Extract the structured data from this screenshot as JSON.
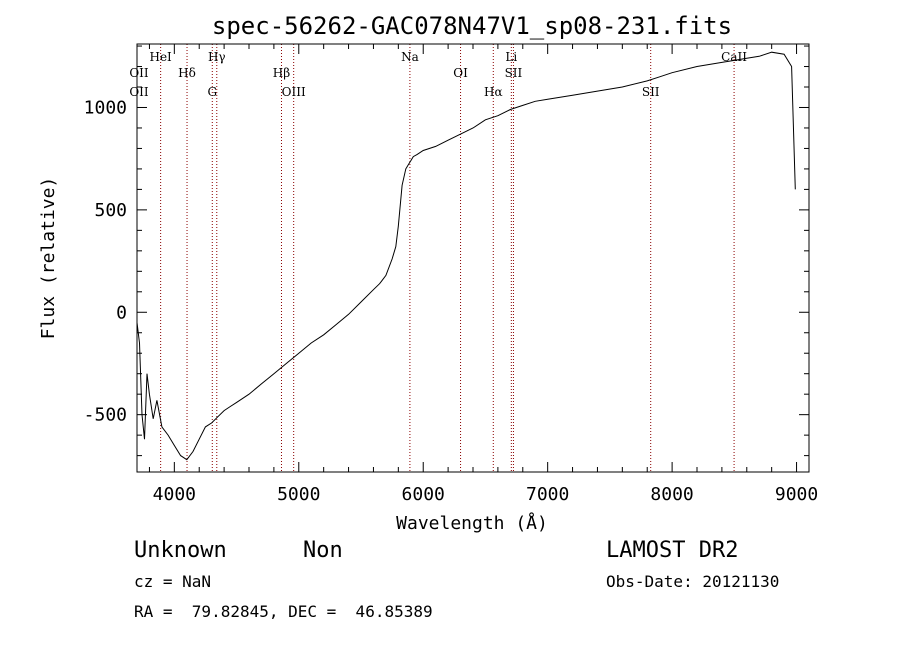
{
  "chart_data": {
    "type": "line",
    "title": "spec-56262-GAC078N47V1_sp08-231.fits",
    "xlabel": "Wavelength (Å)",
    "ylabel": "Flux (relative)",
    "xlim": [
      3700,
      9100
    ],
    "ylim": [
      -780,
      1310
    ],
    "x_ticks": [
      4000,
      5000,
      6000,
      7000,
      8000,
      9000
    ],
    "y_ticks": [
      -500,
      0,
      500,
      1000
    ],
    "line_color": "#000000",
    "marker_color": "#8b0000",
    "grid": false,
    "series": [
      {
        "x": [
          3700,
          3720,
          3740,
          3760,
          3780,
          3800,
          3830,
          3860,
          3900,
          3950,
          4000,
          4050,
          4100,
          4150,
          4200,
          4250,
          4300,
          4350,
          4400,
          4450,
          4500,
          4600,
          4700,
          4800,
          4900,
          5000,
          5100,
          5200,
          5300,
          5400,
          5500,
          5600,
          5650,
          5700,
          5750,
          5780,
          5800,
          5830,
          5860,
          5880,
          5900,
          5920,
          5950,
          6000,
          6100,
          6200,
          6300,
          6400,
          6500,
          6600,
          6700,
          6800,
          6900,
          7000,
          7200,
          7400,
          7600,
          7800,
          7900,
          8000,
          8200,
          8400,
          8500,
          8600,
          8700,
          8800,
          8900,
          8960,
          8990
        ],
        "y": [
          -50,
          -150,
          -500,
          -620,
          -300,
          -400,
          -520,
          -430,
          -560,
          -600,
          -650,
          -700,
          -720,
          -680,
          -620,
          -560,
          -540,
          -510,
          -480,
          -460,
          -440,
          -400,
          -350,
          -300,
          -250,
          -200,
          -150,
          -110,
          -60,
          -10,
          50,
          110,
          140,
          180,
          260,
          320,
          420,
          620,
          700,
          720,
          740,
          760,
          770,
          790,
          810,
          840,
          870,
          900,
          940,
          960,
          990,
          1010,
          1030,
          1040,
          1060,
          1080,
          1100,
          1130,
          1150,
          1170,
          1200,
          1220,
          1230,
          1240,
          1250,
          1270,
          1260,
          1200,
          600
        ]
      }
    ],
    "line_markers": [
      {
        "x": 3890,
        "labels": [
          "HeI"
        ]
      },
      {
        "x": 4102,
        "labels": [
          "Hδ"
        ]
      },
      {
        "x": 4305,
        "labels": [
          "G"
        ]
      },
      {
        "x": 4341,
        "labels": [
          "Hγ"
        ]
      },
      {
        "x": 4861,
        "labels": [
          "Hβ"
        ]
      },
      {
        "x": 4959,
        "labels": [
          "OIII"
        ]
      },
      {
        "x": 5893,
        "labels": [
          "Na"
        ]
      },
      {
        "x": 6300,
        "labels": [
          "OI"
        ]
      },
      {
        "x": 6563,
        "labels": [
          "Hα"
        ]
      },
      {
        "x": 6708,
        "labels": [
          "Li"
        ]
      },
      {
        "x": 6725,
        "labels": [
          "SII"
        ]
      },
      {
        "x": 7828,
        "labels": [
          "SII"
        ]
      },
      {
        "x": 8498,
        "labels": [
          "CaII"
        ]
      }
    ],
    "left_edge_labels": [
      "OII",
      "OII"
    ]
  },
  "footer": {
    "object_class": "Unknown",
    "subclass": "Non",
    "survey": "LAMOST DR2",
    "redshift": "cz = NaN",
    "obs_date": "Obs-Date: 20121130",
    "coords": "RA =  79.82845, DEC =  46.85389"
  }
}
